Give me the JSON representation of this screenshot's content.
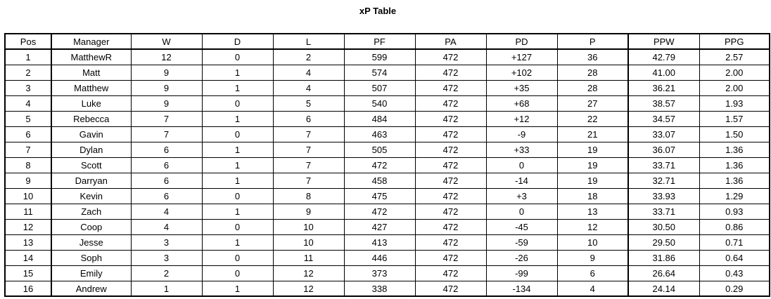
{
  "title": "xP Table",
  "table": {
    "headers": [
      "Pos",
      "Manager",
      "W",
      "D",
      "L",
      "PF",
      "PA",
      "PD",
      "P",
      "PPW",
      "PPG"
    ],
    "rows": [
      [
        "1",
        "MatthewR",
        "12",
        "0",
        "2",
        "599",
        "472",
        "+127",
        "36",
        "42.79",
        "2.57"
      ],
      [
        "2",
        "Matt",
        "9",
        "1",
        "4",
        "574",
        "472",
        "+102",
        "28",
        "41.00",
        "2.00"
      ],
      [
        "3",
        "Matthew",
        "9",
        "1",
        "4",
        "507",
        "472",
        "+35",
        "28",
        "36.21",
        "2.00"
      ],
      [
        "4",
        "Luke",
        "9",
        "0",
        "5",
        "540",
        "472",
        "+68",
        "27",
        "38.57",
        "1.93"
      ],
      [
        "5",
        "Rebecca",
        "7",
        "1",
        "6",
        "484",
        "472",
        "+12",
        "22",
        "34.57",
        "1.57"
      ],
      [
        "6",
        "Gavin",
        "7",
        "0",
        "7",
        "463",
        "472",
        "-9",
        "21",
        "33.07",
        "1.50"
      ],
      [
        "7",
        "Dylan",
        "6",
        "1",
        "7",
        "505",
        "472",
        "+33",
        "19",
        "36.07",
        "1.36"
      ],
      [
        "8",
        "Scott",
        "6",
        "1",
        "7",
        "472",
        "472",
        "0",
        "19",
        "33.71",
        "1.36"
      ],
      [
        "9",
        "Darryan",
        "6",
        "1",
        "7",
        "458",
        "472",
        "-14",
        "19",
        "32.71",
        "1.36"
      ],
      [
        "10",
        "Kevin",
        "6",
        "0",
        "8",
        "475",
        "472",
        "+3",
        "18",
        "33.93",
        "1.29"
      ],
      [
        "11",
        "Zach",
        "4",
        "1",
        "9",
        "472",
        "472",
        "0",
        "13",
        "33.71",
        "0.93"
      ],
      [
        "12",
        "Coop",
        "4",
        "0",
        "10",
        "427",
        "472",
        "-45",
        "12",
        "30.50",
        "0.86"
      ],
      [
        "13",
        "Jesse",
        "3",
        "1",
        "10",
        "413",
        "472",
        "-59",
        "10",
        "29.50",
        "0.71"
      ],
      [
        "14",
        "Soph",
        "3",
        "0",
        "11",
        "446",
        "472",
        "-26",
        "9",
        "31.86",
        "0.64"
      ],
      [
        "15",
        "Emily",
        "2",
        "0",
        "12",
        "373",
        "472",
        "-99",
        "6",
        "26.64",
        "0.43"
      ],
      [
        "16",
        "Andrew",
        "1",
        "1",
        "12",
        "338",
        "472",
        "-134",
        "4",
        "24.14",
        "0.29"
      ]
    ]
  }
}
